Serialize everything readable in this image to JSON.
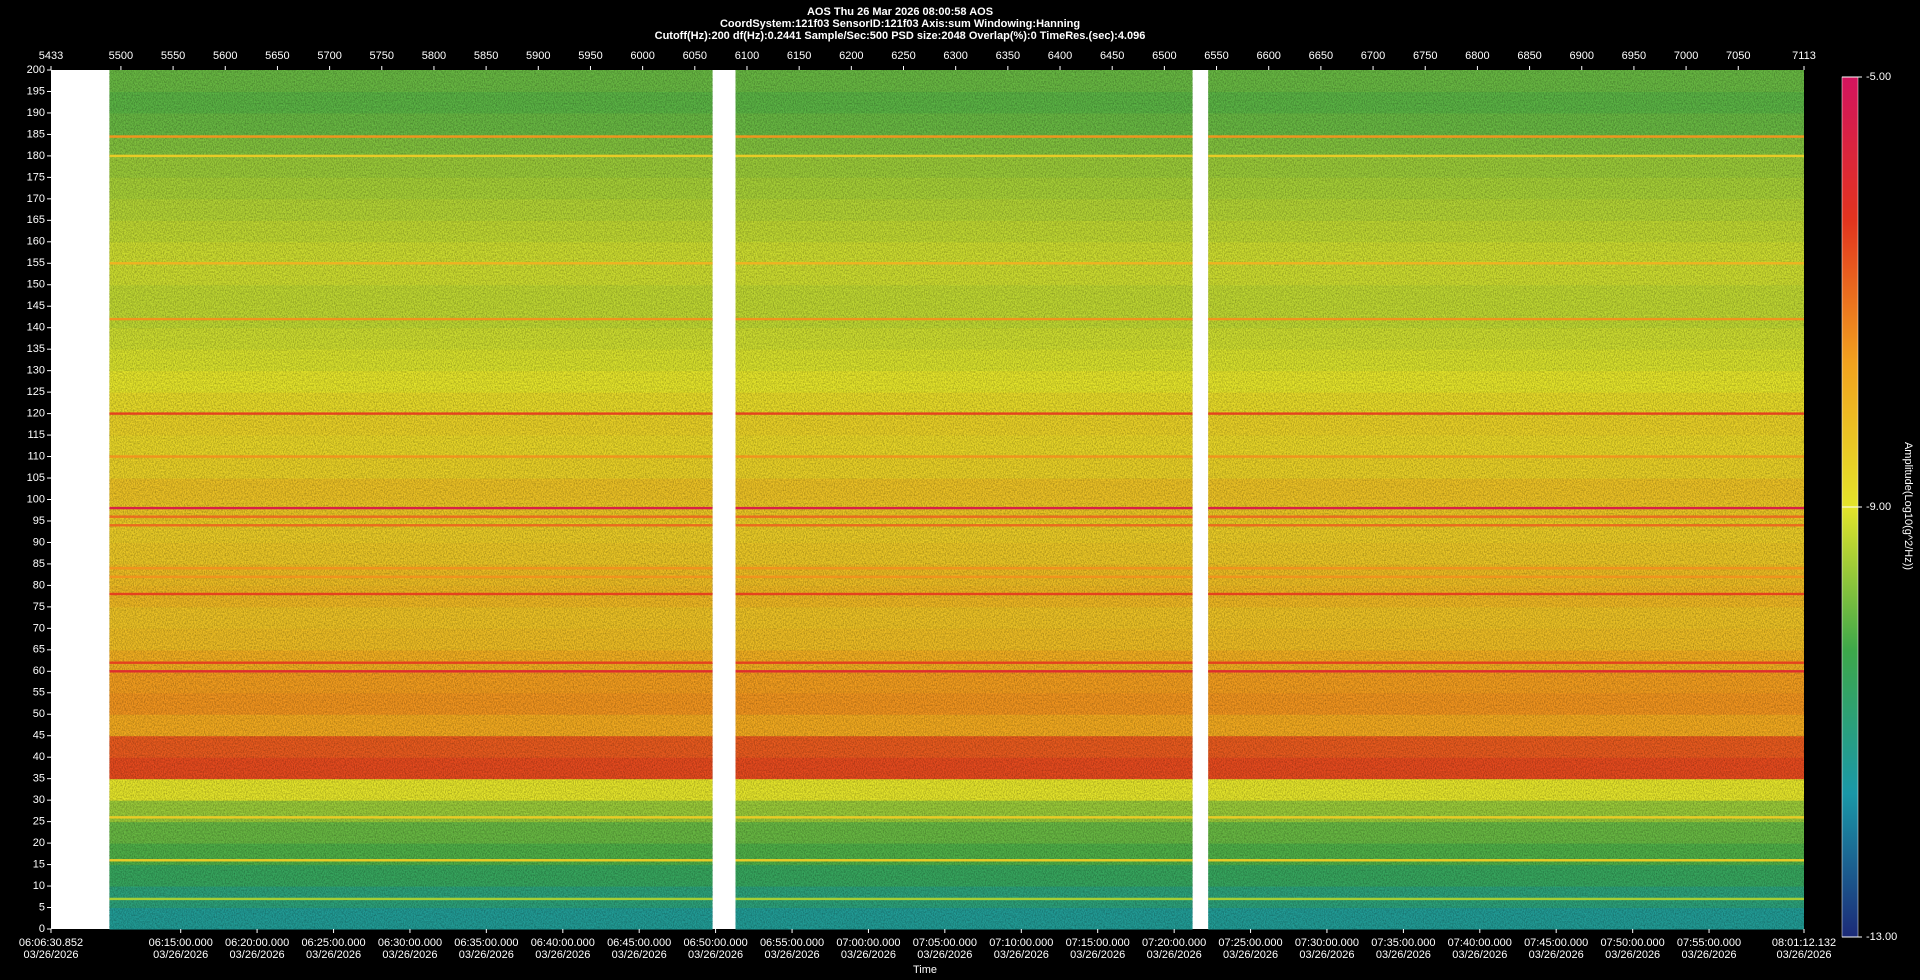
{
  "chart_data": {
    "type": "spectrogram",
    "title": "AOS  Thu 26 Mar 2026 08:00:58  AOS",
    "subtitle": "CoordSystem:121f03   SensorID:121f03   Axis:sum   Windowing:Hanning",
    "subtitle2": "Cutoff(Hz):200   df(Hz):0.2441   Sample/Sec:500   PSD size:2048   Overlap(%):0   TimeRes.(sec):4.096",
    "xlabel": "Time",
    "colorbar_label": "Amplitude(Log10(g^2/Hz))",
    "xlim": [
      5433,
      7113
    ],
    "xticks": [
      5433,
      5500,
      5550,
      5600,
      5650,
      5700,
      5750,
      5800,
      5850,
      5900,
      5950,
      6000,
      6050,
      6100,
      6150,
      6200,
      6250,
      6300,
      6350,
      6400,
      6450,
      6500,
      6550,
      6600,
      6650,
      6700,
      6750,
      6800,
      6850,
      6900,
      6950,
      7000,
      7050,
      7113
    ],
    "time_ticks": [
      {
        "value": 5433,
        "label": "06:06:30.852",
        "date": "03/26/2026"
      },
      {
        "value": 5557.3,
        "label": "06:15:00.000",
        "date": "03/26/2026"
      },
      {
        "value": 5630.5,
        "label": "06:20:00.000",
        "date": "03/26/2026"
      },
      {
        "value": 5703.8,
        "label": "06:25:00.000",
        "date": "03/26/2026"
      },
      {
        "value": 5777.0,
        "label": "06:30:00.000",
        "date": "03/26/2026"
      },
      {
        "value": 5850.2,
        "label": "06:35:00.000",
        "date": "03/26/2026"
      },
      {
        "value": 5923.5,
        "label": "06:40:00.000",
        "date": "03/26/2026"
      },
      {
        "value": 5996.7,
        "label": "06:45:00.000",
        "date": "03/26/2026"
      },
      {
        "value": 6069.9,
        "label": "06:50:00.000",
        "date": "03/26/2026"
      },
      {
        "value": 6143.2,
        "label": "06:55:00.000",
        "date": "03/26/2026"
      },
      {
        "value": 6216.4,
        "label": "07:00:00.000",
        "date": "03/26/2026"
      },
      {
        "value": 6289.6,
        "label": "07:05:00.000",
        "date": "03/26/2026"
      },
      {
        "value": 6362.9,
        "label": "07:10:00.000",
        "date": "03/26/2026"
      },
      {
        "value": 6436.1,
        "label": "07:15:00.000",
        "date": "03/26/2026"
      },
      {
        "value": 6509.4,
        "label": "07:20:00.000",
        "date": "03/26/2026"
      },
      {
        "value": 6582.6,
        "label": "07:25:00.000",
        "date": "03/26/2026"
      },
      {
        "value": 6655.8,
        "label": "07:30:00.000",
        "date": "03/26/2026"
      },
      {
        "value": 6729.1,
        "label": "07:35:00.000",
        "date": "03/26/2026"
      },
      {
        "value": 6802.3,
        "label": "07:40:00.000",
        "date": "03/26/2026"
      },
      {
        "value": 6875.5,
        "label": "07:45:00.000",
        "date": "03/26/2026"
      },
      {
        "value": 6948.8,
        "label": "07:50:00.000",
        "date": "03/26/2026"
      },
      {
        "value": 7022.0,
        "label": "07:55:00.000",
        "date": "03/26/2026"
      },
      {
        "value": 7113,
        "label": "08:01:12.132",
        "date": "03/26/2026"
      }
    ],
    "ylim": [
      0,
      200
    ],
    "yticks": [
      0,
      5,
      10,
      15,
      20,
      25,
      30,
      35,
      40,
      45,
      50,
      55,
      60,
      65,
      70,
      75,
      80,
      85,
      90,
      95,
      100,
      105,
      110,
      115,
      120,
      125,
      130,
      135,
      140,
      145,
      150,
      155,
      160,
      165,
      170,
      175,
      180,
      185,
      190,
      195,
      200
    ],
    "clim": [
      -13,
      -5
    ],
    "cticks": [
      {
        "value": -5,
        "label": "-5.00"
      },
      {
        "value": -9,
        "label": "-9.00"
      },
      {
        "value": -13,
        "label": "-13.00"
      }
    ],
    "colormap": [
      "#1c2a78",
      "#1a98a8",
      "#3da84a",
      "#e4e42a",
      "#f2a21e",
      "#e2341e",
      "#d2145e"
    ],
    "segments": [
      [
        5489,
        6067
      ],
      [
        6089,
        6527
      ],
      [
        6542,
        7113
      ]
    ],
    "freq_bins": [
      0,
      5,
      10,
      15,
      20,
      25,
      30,
      35,
      40,
      45,
      50,
      55,
      60,
      65,
      70,
      75,
      80,
      85,
      90,
      95,
      100,
      105,
      110,
      115,
      120,
      125,
      130,
      135,
      140,
      145,
      150,
      155,
      160,
      165,
      170,
      175,
      180,
      185,
      190,
      195,
      200
    ],
    "values": [
      -11.4,
      -11.0,
      -10.6,
      -10.2,
      -10.0,
      -9.6,
      -9.0,
      -6.6,
      -6.8,
      -7.8,
      -7.5,
      -7.6,
      -7.9,
      -8.2,
      -8.3,
      -8.1,
      -8.2,
      -8.4,
      -8.5,
      -8.4,
      -8.3,
      -8.6,
      -8.7,
      -8.6,
      -8.8,
      -9.0,
      -9.1,
      -9.2,
      -9.3,
      -9.3,
      -9.2,
      -9.2,
      -9.3,
      -9.4,
      -9.5,
      -9.6,
      -9.8,
      -10.0,
      -10.1,
      -10.0
    ],
    "lines": [
      {
        "freq": 184.5,
        "value": -7.5
      },
      {
        "freq": 180,
        "value": -8.5
      },
      {
        "freq": 155,
        "value": -8.0
      },
      {
        "freq": 142,
        "value": -7.5
      },
      {
        "freq": 120,
        "value": -6.5
      },
      {
        "freq": 110,
        "value": -7.5
      },
      {
        "freq": 98,
        "value": -5.5
      },
      {
        "freq": 96,
        "value": -7.0
      },
      {
        "freq": 94,
        "value": -7.0
      },
      {
        "freq": 84,
        "value": -7.5
      },
      {
        "freq": 82,
        "value": -7.5
      },
      {
        "freq": 78,
        "value": -6.5
      },
      {
        "freq": 62,
        "value": -6.5
      },
      {
        "freq": 60,
        "value": -6.0
      },
      {
        "freq": 26,
        "value": -8.5
      },
      {
        "freq": 16,
        "value": -8.5
      },
      {
        "freq": 7,
        "value": -9.5
      }
    ]
  }
}
